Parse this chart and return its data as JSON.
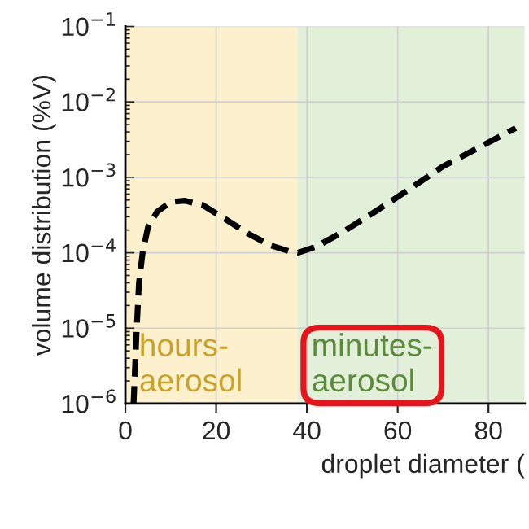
{
  "chart_data": {
    "type": "line",
    "xlabel": "droplet diameter (",
    "ylabel": "volume distribution (%V)",
    "x": [
      1.8,
      2.5,
      3,
      3.8,
      5,
      7,
      10,
      13,
      17,
      22,
      27,
      32,
      36,
      38,
      42,
      48,
      55,
      62,
      70,
      78,
      86
    ],
    "series": [
      {
        "color": "#000000",
        "values": [
          1e-06,
          1e-05,
          4e-05,
          0.0001,
          0.00022,
          0.00035,
          0.00047,
          0.00049,
          0.00043,
          0.00028,
          0.00018,
          0.000125,
          0.000105,
          0.0001,
          0.00012,
          0.00019,
          0.00035,
          0.00066,
          0.0014,
          0.0025,
          0.0045
        ]
      }
    ],
    "line_style": "dashed",
    "marker": "none",
    "log": "y",
    "grid": true,
    "xlim": [
      0,
      88
    ],
    "xticks": [
      0,
      20,
      40,
      60,
      80
    ],
    "ylim": [
      1e-06,
      0.1
    ],
    "yticks": [
      {
        "value": 1e-06,
        "label": "10$^{−6}$"
      },
      {
        "value": 1e-05,
        "label": "10$^{−5}$"
      },
      {
        "value": 0.0001,
        "label": "10$^{−4}$"
      },
      {
        "value": 0.001,
        "label": "10$^{−3}$"
      },
      {
        "value": 0.01,
        "label": "10$^{−2}$"
      },
      {
        "value": 0.1,
        "label": "10$^{−1}$"
      }
    ],
    "bands": [
      {
        "axis": "x",
        "from": 0,
        "to": 38,
        "label": "hours-\naerosol",
        "color": "#fdf0cc"
      },
      {
        "axis": "x",
        "from": 38,
        "to": 88,
        "label": "minutes-\naerosol",
        "color": "#e2efd9"
      }
    ]
  }
}
